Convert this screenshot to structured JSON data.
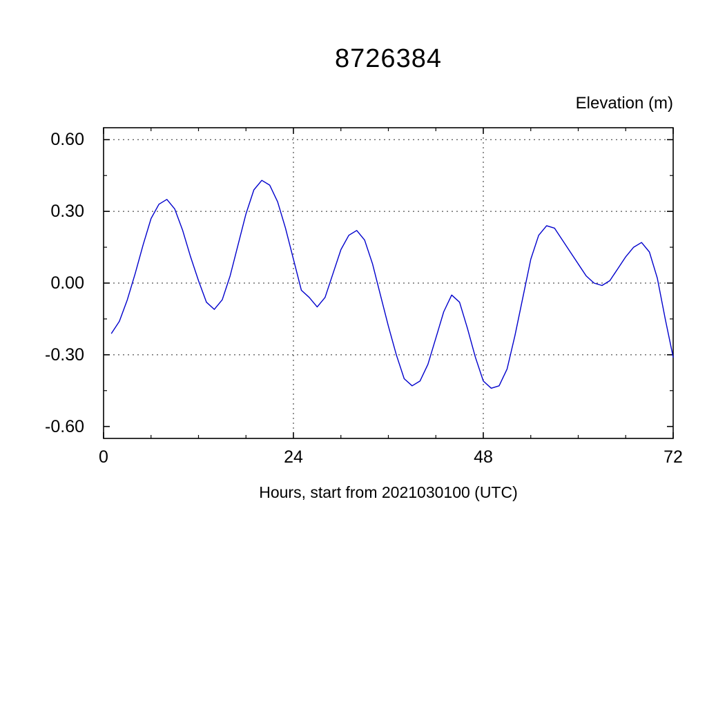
{
  "chart_data": {
    "type": "line",
    "title": "8726384",
    "ylabel": "Elevation (m)",
    "xlabel": "Hours, start from 2021030100 (UTC)",
    "legend": null,
    "grid": true,
    "line_color": "#0000cc",
    "xlim": [
      0,
      72
    ],
    "ylim": [
      -0.65,
      0.65
    ],
    "xtick_values": [
      0,
      24,
      48,
      72
    ],
    "xtick_labels": [
      "0",
      "24",
      "48",
      "72"
    ],
    "ytick_values": [
      0.6,
      0.3,
      0.0,
      -0.3,
      -0.6
    ],
    "ytick_labels": [
      "0.60",
      "0.30",
      "0.00",
      "-0.30",
      "-0.60"
    ],
    "x_minor_step": 6,
    "y_minor_step": 0.15,
    "grid_x": [
      24,
      48
    ],
    "grid_y": [
      0.6,
      0.3,
      0.0,
      -0.3
    ],
    "x": [
      1,
      2,
      3,
      4,
      5,
      6,
      7,
      8,
      9,
      10,
      11,
      12,
      13,
      14,
      15,
      16,
      17,
      18,
      19,
      20,
      21,
      22,
      23,
      24,
      25,
      26,
      27,
      28,
      29,
      30,
      31,
      32,
      33,
      34,
      35,
      36,
      37,
      38,
      39,
      40,
      41,
      42,
      43,
      44,
      45,
      46,
      47,
      48,
      49,
      50,
      51,
      52,
      53,
      54,
      55,
      56,
      57,
      58,
      59,
      60,
      61,
      62,
      63,
      64,
      65,
      66,
      67,
      68,
      69,
      70,
      71,
      72
    ],
    "y": [
      -0.21,
      -0.16,
      -0.07,
      0.04,
      0.16,
      0.27,
      0.33,
      0.35,
      0.31,
      0.22,
      0.11,
      0.01,
      -0.08,
      -0.11,
      -0.07,
      0.03,
      0.16,
      0.29,
      0.39,
      0.43,
      0.41,
      0.34,
      0.23,
      0.1,
      -0.03,
      -0.06,
      -0.1,
      -0.06,
      0.04,
      0.14,
      0.2,
      0.22,
      0.18,
      0.08,
      -0.05,
      -0.18,
      -0.3,
      -0.4,
      -0.43,
      -0.41,
      -0.34,
      -0.23,
      -0.12,
      -0.05,
      -0.08,
      -0.19,
      -0.31,
      -0.41,
      -0.44,
      -0.43,
      -0.36,
      -0.22,
      -0.06,
      0.1,
      0.2,
      0.24,
      0.23,
      0.18,
      0.13,
      0.08,
      0.03,
      0.0,
      -0.01,
      0.01,
      0.06,
      0.11,
      0.15,
      0.17,
      0.13,
      0.02,
      -0.15,
      -0.31
    ]
  }
}
